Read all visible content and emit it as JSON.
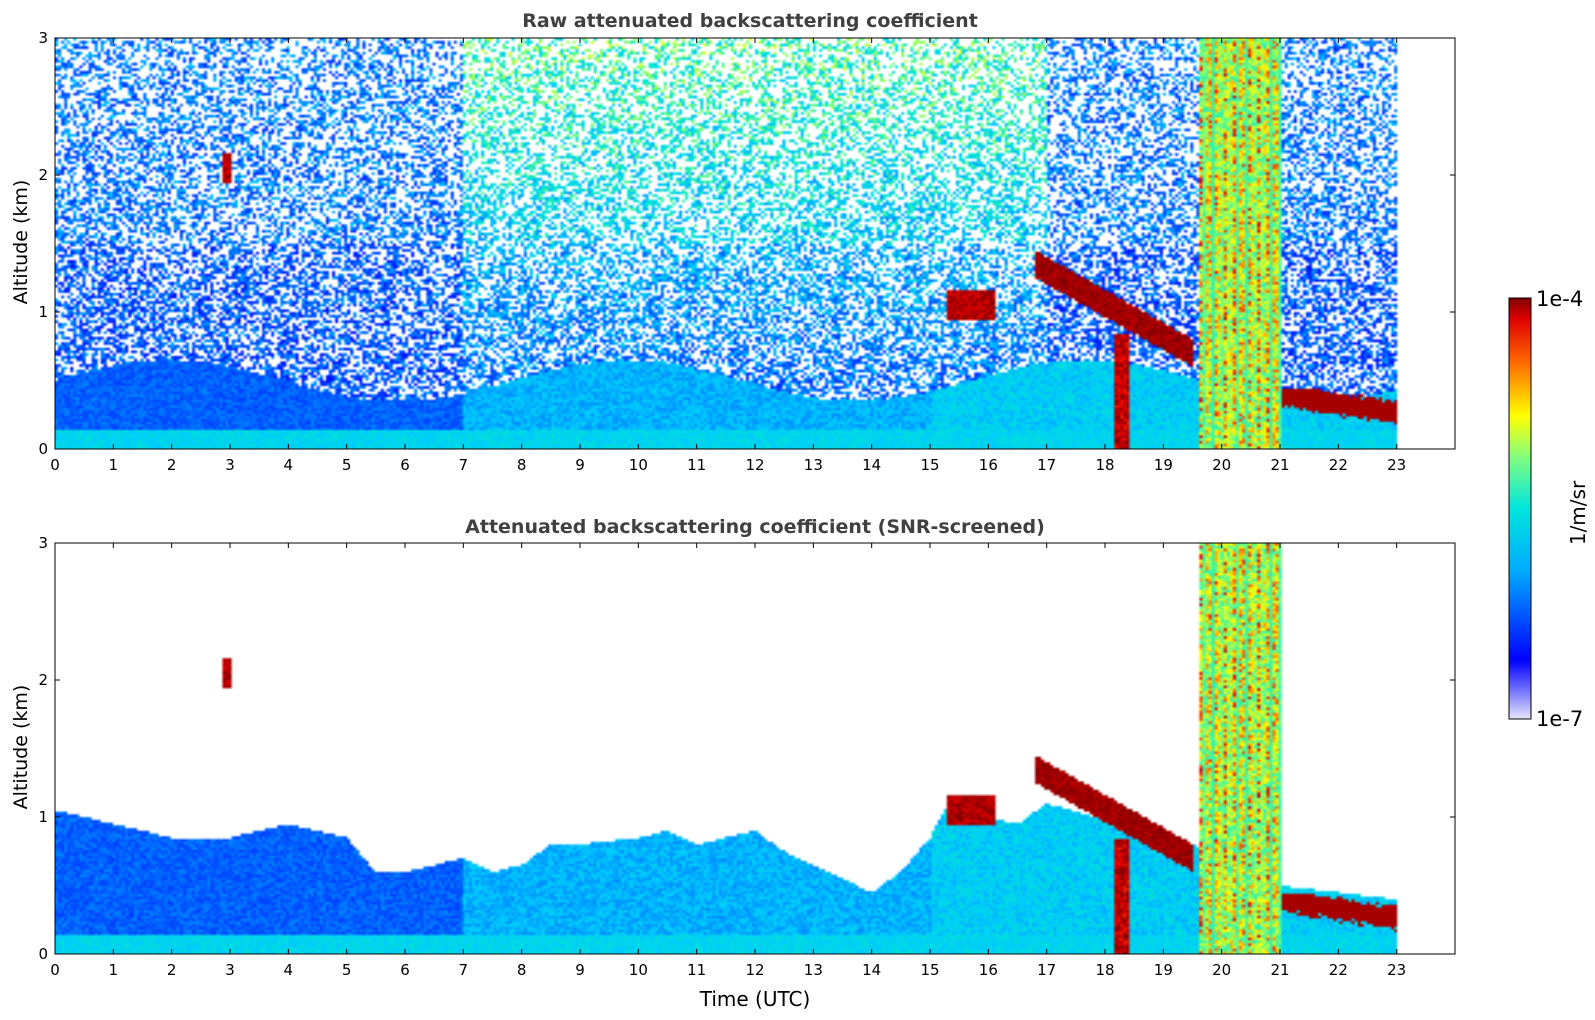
{
  "chart_data": [
    {
      "type": "heatmap",
      "title": "Raw attenuated backscattering coefficient",
      "xlabel": "",
      "ylabel": "Altitude (km)",
      "xlim": [
        0,
        24
      ],
      "ylim": [
        0,
        3
      ],
      "xticks": [
        "0",
        "1",
        "2",
        "3",
        "4",
        "5",
        "6",
        "7",
        "8",
        "9",
        "10",
        "11",
        "12",
        "13",
        "14",
        "15",
        "16",
        "17",
        "18",
        "19",
        "20",
        "21",
        "22",
        "23"
      ],
      "yticks": [
        "0",
        "1",
        "2",
        "3"
      ],
      "grid": false,
      "data_end_hour": 23,
      "features": [
        {
          "kind": "aerosol-layer",
          "from": 0,
          "to": 23,
          "top_km": 0.5,
          "level": "medium"
        },
        {
          "kind": "cloud",
          "from": 2.85,
          "to": 3.0,
          "alt_km": [
            1.95,
            2.15
          ]
        },
        {
          "kind": "cloud",
          "from": 15.3,
          "to": 16.1,
          "alt_km": [
            0.95,
            1.15
          ]
        },
        {
          "kind": "cloud",
          "from": 16.8,
          "to": 19.5,
          "alt_km": [
            0.6,
            1.45
          ]
        },
        {
          "kind": "precipitation",
          "from": 18.15,
          "to": 18.4,
          "alt_km": [
            0,
            0.85
          ]
        },
        {
          "kind": "cloud",
          "from": 19.6,
          "to": 21.0,
          "alt_km": [
            0,
            3
          ]
        },
        {
          "kind": "cloud",
          "from": 21.0,
          "to": 23.0,
          "alt_km": [
            0.05,
            0.45
          ]
        }
      ]
    },
    {
      "type": "heatmap",
      "title": "Attenuated backscattering coefficient (SNR-screened)",
      "xlabel": "Time (UTC)",
      "ylabel": "Altitude (km)",
      "xlim": [
        0,
        24
      ],
      "ylim": [
        0,
        3
      ],
      "xticks": [
        "0",
        "1",
        "2",
        "3",
        "4",
        "5",
        "6",
        "7",
        "8",
        "9",
        "10",
        "11",
        "12",
        "13",
        "14",
        "15",
        "16",
        "17",
        "18",
        "19",
        "20",
        "21",
        "22",
        "23"
      ],
      "yticks": [
        "0",
        "1",
        "2",
        "3"
      ],
      "grid": false,
      "data_end_hour": 23,
      "screened_top_km": [
        [
          0,
          1.05
        ],
        [
          1,
          0.95
        ],
        [
          2,
          0.85
        ],
        [
          3,
          0.85
        ],
        [
          4,
          0.95
        ],
        [
          5,
          0.85
        ],
        [
          5.5,
          0.6
        ],
        [
          6,
          0.6
        ],
        [
          7,
          0.7
        ],
        [
          7.5,
          0.6
        ],
        [
          8,
          0.65
        ],
        [
          8.5,
          0.8
        ],
        [
          9,
          0.8
        ],
        [
          10,
          0.85
        ],
        [
          10.5,
          0.9
        ],
        [
          11,
          0.8
        ],
        [
          12,
          0.9
        ],
        [
          12.5,
          0.75
        ],
        [
          13,
          0.65
        ],
        [
          14,
          0.45
        ],
        [
          14.5,
          0.6
        ],
        [
          15,
          0.85
        ],
        [
          15.3,
          1.1
        ],
        [
          16,
          1.0
        ],
        [
          16.5,
          0.95
        ],
        [
          17,
          1.1
        ],
        [
          19.5,
          0.8
        ],
        [
          21,
          0.5
        ],
        [
          23,
          0.4
        ]
      ]
    }
  ],
  "colorbar": {
    "label": "1/m/sr",
    "max_label": "1e-4",
    "min_label": "1e-7",
    "colormap": "jet"
  }
}
